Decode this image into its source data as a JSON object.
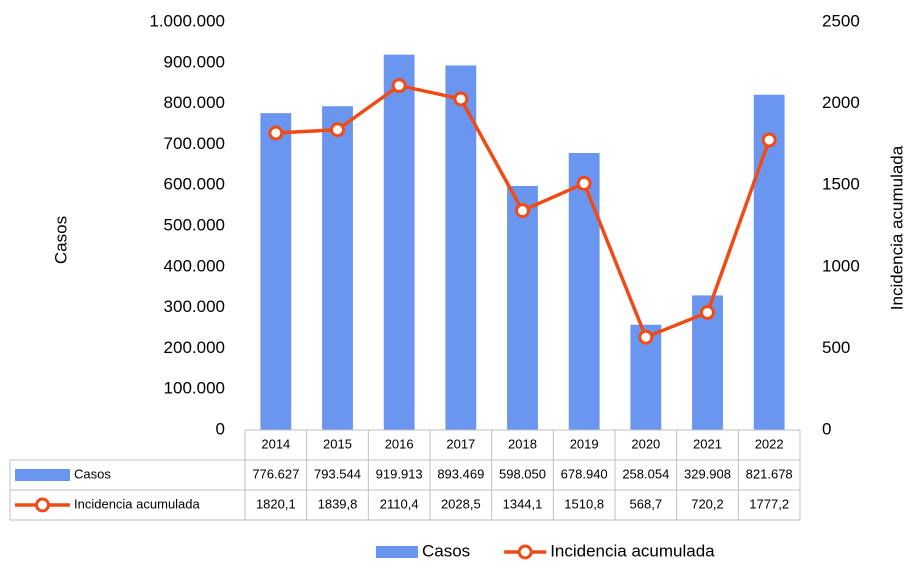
{
  "chart_data": {
    "type": "combo",
    "y_label": "Casos",
    "y2_label": "Incidencia acumulada",
    "categories": [
      "2014",
      "2015",
      "2016",
      "2017",
      "2018",
      "2019",
      "2020",
      "2021",
      "2022"
    ],
    "series": [
      {
        "name": "Casos",
        "type": "bar",
        "color": "#6b96f0",
        "values": [
          776627,
          793544,
          919913,
          893469,
          598050,
          678940,
          258054,
          329908,
          821678
        ],
        "value_labels": [
          "776.627",
          "793.544",
          "919.913",
          "893.469",
          "598.050",
          "678.940",
          "258.054",
          "329.908",
          "821.678"
        ]
      },
      {
        "name": "Incidencia acumulada",
        "type": "line",
        "axis": "y2",
        "color": "#f04b16",
        "values": [
          1820.1,
          1839.8,
          2110.4,
          2028.5,
          1344.1,
          1510.8,
          568.7,
          720.2,
          1777.2
        ],
        "value_labels": [
          "1820,1",
          "1839,8",
          "2110,4",
          "2028,5",
          "1344,1",
          "1510,8",
          "568,7",
          "720,2",
          "1777,2"
        ]
      }
    ],
    "ylim": [
      0,
      1000000
    ],
    "yticks": [
      0,
      {
        "value": 100000,
        "label": "100.000"
      },
      {
        "value": 200000,
        "label": "200.000"
      },
      {
        "value": 300000,
        "label": "300.000"
      },
      {
        "value": 400000,
        "label": "400.000"
      },
      {
        "value": 500000,
        "label": "500.000"
      },
      {
        "value": 600000,
        "label": "600.000"
      },
      {
        "value": 700000,
        "label": "700.000"
      },
      {
        "value": 800000,
        "label": "800.000"
      },
      {
        "value": 900000,
        "label": "900.000"
      },
      {
        "value": 1000000,
        "label": "1.000.000"
      }
    ],
    "y2lim": [
      0,
      2500
    ],
    "y2ticks": [
      0,
      500,
      1000,
      1500,
      2000,
      2500
    ],
    "legend": "bottom"
  }
}
